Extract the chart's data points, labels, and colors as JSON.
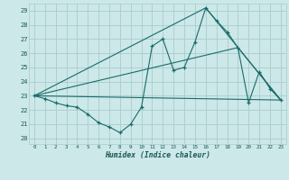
{
  "title": "",
  "xlabel": "Humidex (Indice chaleur)",
  "bg_color": "#cce8e8",
  "grid_color": "#aacccc",
  "line_color": "#1a6b6b",
  "xlim": [
    -0.5,
    23.5
  ],
  "ylim": [
    19.6,
    29.5
  ],
  "yticks": [
    20,
    21,
    22,
    23,
    24,
    25,
    26,
    27,
    28,
    29
  ],
  "xticks": [
    0,
    1,
    2,
    3,
    4,
    5,
    6,
    7,
    8,
    9,
    10,
    11,
    12,
    13,
    14,
    15,
    16,
    17,
    18,
    19,
    20,
    21,
    22,
    23
  ],
  "xtick_labels": [
    "0",
    "1",
    "2",
    "3",
    "4",
    "5",
    "6",
    "7",
    "8",
    "9",
    "10",
    "11",
    "12",
    "13",
    "14",
    "15",
    "16",
    "17",
    "18",
    "19",
    "20",
    "21",
    "22",
    "23"
  ],
  "series1_x": [
    0,
    1,
    2,
    3,
    4,
    5,
    6,
    7,
    8,
    9,
    10,
    11,
    12,
    13,
    14,
    15,
    16,
    17,
    18,
    19,
    20,
    21,
    22,
    23
  ],
  "series1_y": [
    23.0,
    22.8,
    22.5,
    22.3,
    22.2,
    21.7,
    21.1,
    20.8,
    20.4,
    21.0,
    22.2,
    26.5,
    27.0,
    24.8,
    25.0,
    26.8,
    29.2,
    28.3,
    27.5,
    26.4,
    22.5,
    24.7,
    23.5,
    22.7
  ],
  "series2_x": [
    0,
    23
  ],
  "series2_y": [
    23.0,
    22.7
  ],
  "series3_x": [
    0,
    16,
    23
  ],
  "series3_y": [
    23.0,
    29.2,
    22.7
  ],
  "series4_x": [
    0,
    19,
    23
  ],
  "series4_y": [
    23.0,
    26.4,
    22.7
  ]
}
